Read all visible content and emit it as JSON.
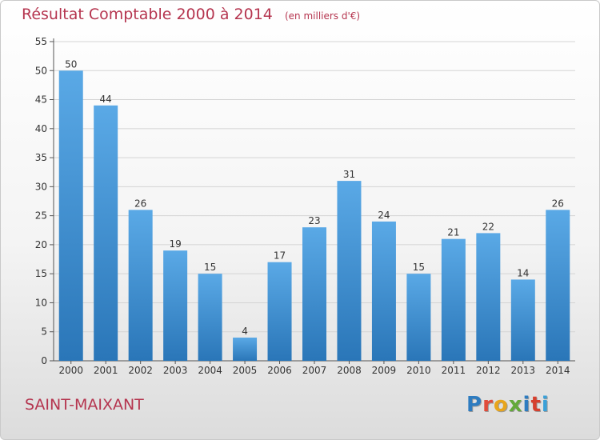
{
  "title": "Résultat Comptable 2000 à 2014",
  "subtitle": "(en milliers d'€)",
  "city": "SAINT-MAIXANT",
  "logo": {
    "letters": [
      "P",
      "r",
      "o",
      "x",
      "i",
      "t",
      "i"
    ],
    "colors": [
      "#2e7cc0",
      "#e04c3b",
      "#e8a51c",
      "#63a93a",
      "#2e7cc0",
      "#d6402f",
      "#3aa0d8"
    ]
  },
  "colors": {
    "bar_top": "#5aa9e6",
    "bar_bottom": "#2a76b8",
    "title": "#b5354f"
  },
  "chart_data": {
    "type": "bar",
    "categories": [
      "2000",
      "2001",
      "2002",
      "2003",
      "2004",
      "2005",
      "2006",
      "2007",
      "2008",
      "2009",
      "2010",
      "2011",
      "2012",
      "2013",
      "2014"
    ],
    "values": [
      50,
      44,
      26,
      19,
      15,
      4,
      17,
      23,
      31,
      24,
      15,
      21,
      22,
      14,
      26
    ],
    "ylim": [
      0,
      55
    ],
    "yticks": [
      0,
      5,
      10,
      15,
      20,
      25,
      30,
      35,
      40,
      45,
      50,
      55
    ],
    "grid": true,
    "title": "Résultat Comptable 2000 à 2014",
    "xlabel": "",
    "ylabel": ""
  }
}
